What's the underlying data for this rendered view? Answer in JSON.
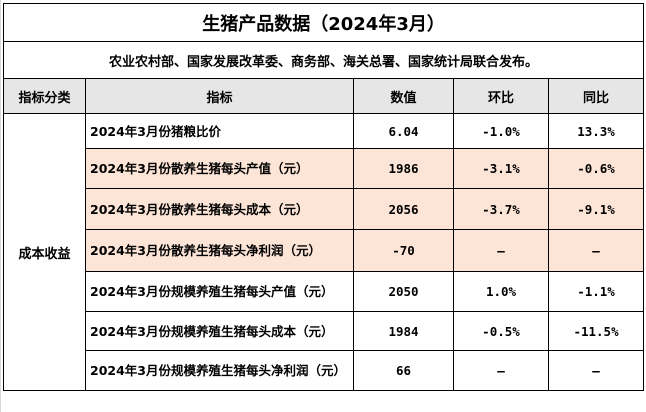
{
  "title": "生猪产品数据（2024年3月）",
  "notice": "农业农村部、国家发展改革委、商务部、海关总署、国家统计局联合发布。",
  "headers": {
    "category": "指标分类",
    "indicator": "指标",
    "value": "数值",
    "mom": "环比",
    "yoy": "同比"
  },
  "category": "成本收益",
  "rows": [
    {
      "indicator": "2024年3月份猪粮比价",
      "value": "6.04",
      "mom": "-1.0%",
      "yoy": "13.3%"
    },
    {
      "indicator": "2024年3月份散养生猪每头产值（元）",
      "value": "1986",
      "mom": "-3.1%",
      "yoy": "-0.6%"
    },
    {
      "indicator": "2024年3月份散养生猪每头成本（元）",
      "value": "2056",
      "mom": "-3.7%",
      "yoy": "-9.1%"
    },
    {
      "indicator": "2024年3月份散养生猪每头净利润（元）",
      "value": "-70",
      "mom": "—",
      "yoy": "—"
    },
    {
      "indicator": "2024年3月份规模养殖生猪每头产值（元）",
      "value": "2050",
      "mom": "1.0%",
      "yoy": "-1.1%"
    },
    {
      "indicator": "2024年3月份规模养殖生猪每头成本（元）",
      "value": "1984",
      "mom": "-0.5%",
      "yoy": "-11.5%"
    },
    {
      "indicator": "2024年3月份规模养殖生猪每头净利润（元）",
      "value": "66",
      "mom": "—",
      "yoy": "—"
    }
  ],
  "colors": {
    "header_fill": "#e7e6e6",
    "highlight_fill": "#fce4d6",
    "border": "#000000"
  }
}
